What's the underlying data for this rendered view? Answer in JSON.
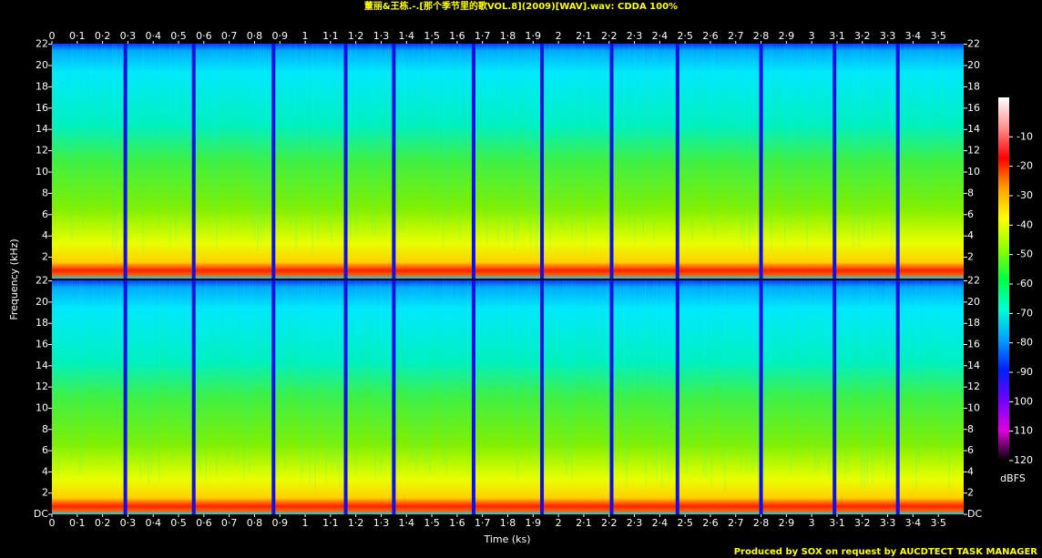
{
  "chart_data": [
    {
      "type": "spectrogram",
      "title": "董丽&王栋.-.[那个季节里的歌VOL.8](2009)[WAV].wav: CDDA 100%",
      "ylabel": "Frequency (kHz)",
      "xlim": [
        0,
        3.6
      ],
      "xticks": [
        0,
        {
          "value": 0.1,
          "label": "0·1"
        },
        {
          "value": 0.2,
          "label": "0·2"
        },
        {
          "value": 0.3,
          "label": "0·3"
        },
        {
          "value": 0.4,
          "label": "0·4"
        },
        {
          "value": 0.5,
          "label": "0·5"
        },
        {
          "value": 0.6,
          "label": "0·6"
        },
        {
          "value": 0.7,
          "label": "0·7"
        },
        {
          "value": 0.8,
          "label": "0·8"
        },
        {
          "value": 0.9,
          "label": "0·9"
        },
        1,
        {
          "value": 1.1,
          "label": "1·1"
        },
        {
          "value": 1.2,
          "label": "1·2"
        },
        {
          "value": 1.3,
          "label": "1·3"
        },
        {
          "value": 1.4,
          "label": "1·4"
        },
        {
          "value": 1.5,
          "label": "1·5"
        },
        {
          "value": 1.6,
          "label": "1·6"
        },
        {
          "value": 1.7,
          "label": "1·7"
        },
        {
          "value": 1.8,
          "label": "1·8"
        },
        {
          "value": 1.9,
          "label": "1·9"
        },
        2,
        {
          "value": 2.1,
          "label": "2·1"
        },
        {
          "value": 2.2,
          "label": "2·2"
        },
        {
          "value": 2.3,
          "label": "2·3"
        },
        {
          "value": 2.4,
          "label": "2·4"
        },
        {
          "value": 2.5,
          "label": "2·5"
        },
        {
          "value": 2.6,
          "label": "2·6"
        },
        {
          "value": 2.7,
          "label": "2·7"
        },
        {
          "value": 2.8,
          "label": "2·8"
        },
        {
          "value": 2.9,
          "label": "2·9"
        },
        3,
        {
          "value": 3.1,
          "label": "3·1"
        },
        {
          "value": 3.2,
          "label": "3·2"
        },
        {
          "value": 3.3,
          "label": "3·3"
        },
        {
          "value": 3.4,
          "label": "3·4"
        },
        {
          "value": 3.5,
          "label": "3·5"
        }
      ],
      "ylim": [
        0,
        22.05
      ],
      "yticks": [
        2,
        4,
        6,
        8,
        10,
        12,
        14,
        16,
        18,
        20,
        22
      ],
      "track_boundaries": [
        0.29,
        0.56,
        0.875,
        1.16,
        1.35,
        1.665,
        1.935,
        2.21,
        2.47,
        2.8,
        3.09,
        3.34
      ]
    },
    {
      "type": "spectrogram",
      "xlabel": "Time (ks)",
      "xlim": [
        0,
        3.6
      ],
      "xticks": [
        0,
        {
          "value": 0.1,
          "label": "0·1"
        },
        {
          "value": 0.2,
          "label": "0·2"
        },
        {
          "value": 0.3,
          "label": "0·3"
        },
        {
          "value": 0.4,
          "label": "0·4"
        },
        {
          "value": 0.5,
          "label": "0·5"
        },
        {
          "value": 0.6,
          "label": "0·6"
        },
        {
          "value": 0.7,
          "label": "0·7"
        },
        {
          "value": 0.8,
          "label": "0·8"
        },
        {
          "value": 0.9,
          "label": "0·9"
        },
        1,
        {
          "value": 1.1,
          "label": "1·1"
        },
        {
          "value": 1.2,
          "label": "1·2"
        },
        {
          "value": 1.3,
          "label": "1·3"
        },
        {
          "value": 1.4,
          "label": "1·4"
        },
        {
          "value": 1.5,
          "label": "1·5"
        },
        {
          "value": 1.6,
          "label": "1·6"
        },
        {
          "value": 1.7,
          "label": "1·7"
        },
        {
          "value": 1.8,
          "label": "1·8"
        },
        {
          "value": 1.9,
          "label": "1·9"
        },
        2,
        {
          "value": 2.1,
          "label": "2·1"
        },
        {
          "value": 2.2,
          "label": "2·2"
        },
        {
          "value": 2.3,
          "label": "2·3"
        },
        {
          "value": 2.4,
          "label": "2·4"
        },
        {
          "value": 2.5,
          "label": "2·5"
        },
        {
          "value": 2.6,
          "label": "2·6"
        },
        {
          "value": 2.7,
          "label": "2·7"
        },
        {
          "value": 2.8,
          "label": "2·8"
        },
        {
          "value": 2.9,
          "label": "2·9"
        },
        3,
        {
          "value": 3.1,
          "label": "3·1"
        },
        {
          "value": 3.2,
          "label": "3·2"
        },
        {
          "value": 3.3,
          "label": "3·3"
        },
        {
          "value": 3.4,
          "label": "3·4"
        },
        {
          "value": 3.5,
          "label": "3·5"
        }
      ],
      "ylim": [
        0,
        22.05
      ],
      "yticks": [
        {
          "value": 0,
          "label": "DC"
        },
        2,
        4,
        6,
        8,
        10,
        12,
        14,
        16,
        18,
        20,
        22
      ],
      "track_boundaries": [
        0.29,
        0.56,
        0.875,
        1.16,
        1.35,
        1.665,
        1.935,
        2.21,
        2.47,
        2.8,
        3.09,
        3.34
      ]
    }
  ],
  "colorbar": {
    "label": "dBFS",
    "clim": [
      -120,
      0
    ],
    "ticks": [
      -10,
      -20,
      -30,
      -40,
      -50,
      -60,
      -70,
      -80,
      -90,
      -100,
      -110,
      -120
    ],
    "colormap": [
      "#ffffff",
      "#ff9090",
      "#ff0000",
      "#ffa000",
      "#ffff00",
      "#90ff00",
      "#00ff40",
      "#00ffd0",
      "#00a0ff",
      "#0020ff",
      "#7000ff",
      "#e000e0",
      "#000000"
    ]
  },
  "footer": "Produced by SOX on request by AUCDTECT TASK MANAGER"
}
